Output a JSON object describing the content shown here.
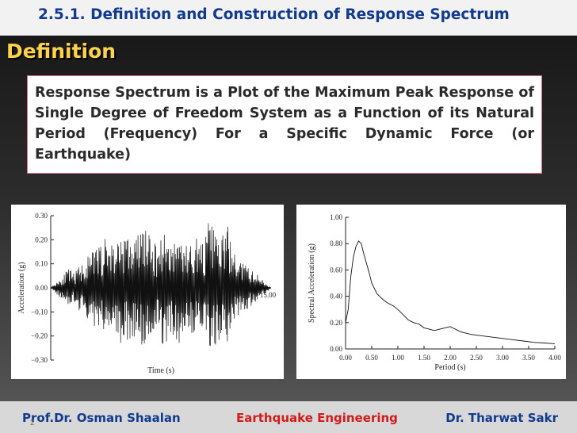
{
  "slide": {
    "title": "2.5.1. Definition  and Construction of Response Spectrum",
    "section_heading": "Definition",
    "definition_text": "Response Spectrum is  a Plot of the Maximum Peak Response of Single Degree of Freedom System as a Function of its Natural Period (Frequency) For a Specific Dynamic Force (or Earthquake)",
    "slide_number": "2"
  },
  "footer": {
    "left": "Prof.Dr. Osman Shaalan",
    "center": "Earthquake Engineering",
    "right": "Dr. Tharwat Sakr"
  },
  "colors": {
    "title_blue": "#123a8e",
    "heading_yellow": "#ffd24a",
    "footer_red": "#d41a1a",
    "box_border": "#e26d86"
  },
  "chart_data": [
    {
      "type": "line",
      "title": "",
      "xlabel": "Time (s)",
      "ylabel": "Acceleration (g)",
      "xlim": [
        0,
        15
      ],
      "ylim": [
        -0.3,
        0.3
      ],
      "x_ticks": [
        "0.00",
        "15.00"
      ],
      "y_ticks": [
        "0.30",
        "0.20",
        "0.10",
        "0.00",
        "−0.10",
        "−0.20",
        "−0.30"
      ],
      "grid": false,
      "series": [
        {
          "x": [
            0,
            0.4,
            0.8,
            1.2,
            1.6,
            2.0,
            2.4,
            2.8,
            3.2,
            3.6,
            4.0,
            4.4,
            4.8,
            5.2,
            5.6,
            6.0,
            6.4,
            6.8,
            7.2,
            7.6,
            8.0,
            8.4,
            8.8,
            9.2,
            9.6,
            10.0,
            10.4,
            10.8,
            11.2,
            11.6,
            12.0,
            12.4,
            12.8,
            13.2,
            13.6,
            14.0,
            14.4,
            15.0
          ],
          "y": [
            0.0,
            0.03,
            -0.05,
            0.08,
            -0.06,
            0.1,
            -0.12,
            0.15,
            -0.18,
            0.2,
            -0.22,
            0.18,
            -0.25,
            0.22,
            -0.2,
            0.24,
            -0.28,
            0.2,
            -0.18,
            0.25,
            -0.22,
            0.2,
            -0.24,
            0.18,
            -0.2,
            0.22,
            -0.18,
            0.29,
            -0.25,
            0.2,
            -0.28,
            0.15,
            -0.12,
            0.1,
            -0.08,
            0.06,
            -0.04,
            0.0
          ]
        }
      ]
    },
    {
      "type": "line",
      "title": "",
      "xlabel": "Period (s)",
      "ylabel": "Spectral Acceleration (g)",
      "xlim": [
        0,
        4
      ],
      "ylim": [
        0,
        1
      ],
      "x_ticks": [
        "0.00",
        "0.50",
        "1.00",
        "1.50",
        "2.00",
        "2.50",
        "3.00",
        "3.50",
        "4.00"
      ],
      "y_ticks": [
        "1.00",
        "0.80",
        "0.60",
        "0.40",
        "0.20",
        "0.00"
      ],
      "grid": false,
      "series": [
        {
          "x": [
            0.0,
            0.05,
            0.1,
            0.15,
            0.2,
            0.25,
            0.3,
            0.35,
            0.4,
            0.45,
            0.5,
            0.6,
            0.7,
            0.8,
            0.9,
            1.0,
            1.1,
            1.2,
            1.3,
            1.4,
            1.5,
            1.6,
            1.7,
            1.8,
            1.9,
            2.0,
            2.2,
            2.4,
            2.6,
            2.8,
            3.0,
            3.2,
            3.4,
            3.6,
            3.8,
            4.0
          ],
          "y": [
            0.2,
            0.3,
            0.55,
            0.7,
            0.78,
            0.82,
            0.8,
            0.72,
            0.65,
            0.58,
            0.5,
            0.42,
            0.38,
            0.35,
            0.33,
            0.3,
            0.26,
            0.22,
            0.2,
            0.19,
            0.16,
            0.15,
            0.14,
            0.15,
            0.16,
            0.17,
            0.13,
            0.11,
            0.1,
            0.09,
            0.08,
            0.07,
            0.06,
            0.05,
            0.045,
            0.04
          ]
        }
      ]
    }
  ]
}
